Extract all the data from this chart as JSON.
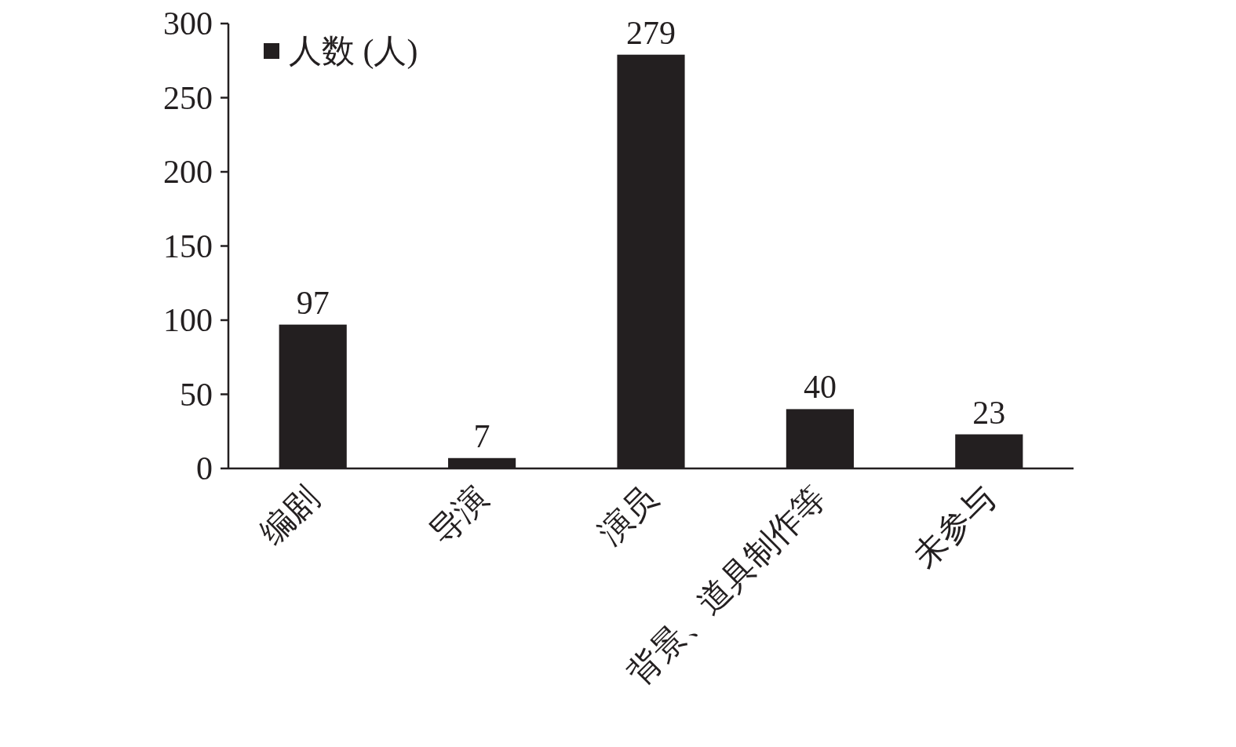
{
  "chart_data": {
    "type": "bar",
    "categories": [
      "编剧",
      "导演",
      "演员",
      "背景、道具制作等",
      "未参与"
    ],
    "series": [
      {
        "name": "人数 (人)",
        "color": "#231f20",
        "values": [
          97,
          7,
          279,
          40,
          23
        ]
      }
    ],
    "ylim": [
      0,
      300
    ],
    "yticks": [
      0,
      50,
      100,
      150,
      200,
      250,
      300
    ],
    "data_labels": true,
    "legend": "top left",
    "grid": false
  }
}
